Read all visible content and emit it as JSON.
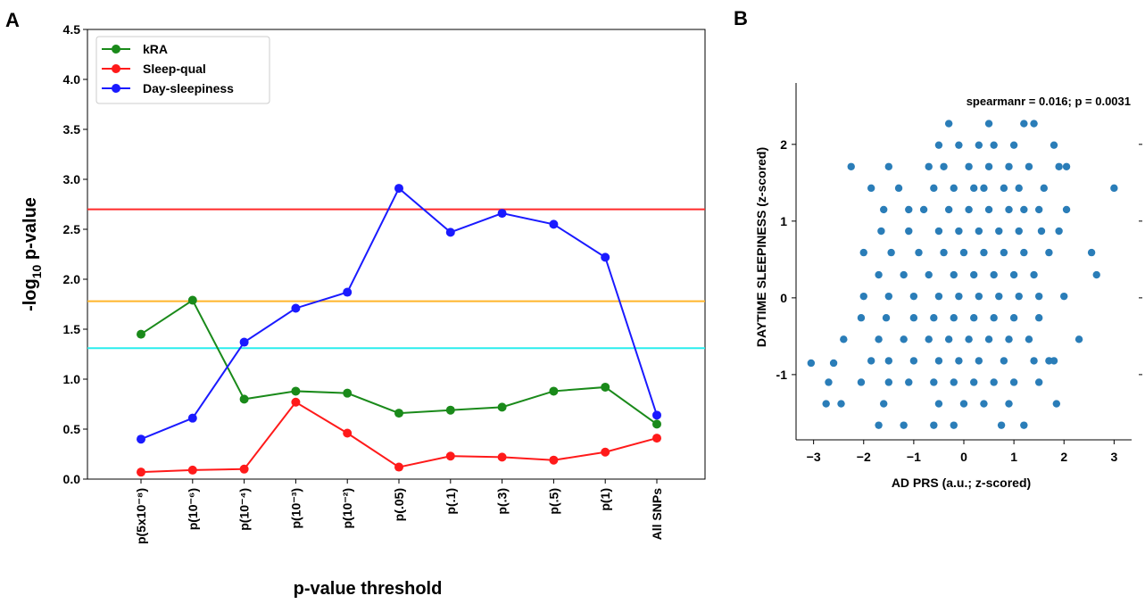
{
  "panels": {
    "a_letter": "A",
    "b_letter": "B"
  },
  "chart_data": [
    {
      "type": "line",
      "panel": "A",
      "xlabel": "p-value threshold",
      "ylabel_prefix": "-log",
      "ylabel_subscript": "10",
      "ylabel_suffix": " p-value",
      "ylim": [
        0,
        4.5
      ],
      "yticks": [
        "0.0",
        "0.5",
        "1.0",
        "1.5",
        "2.0",
        "2.5",
        "3.0",
        "3.5",
        "4.0",
        "4.5"
      ],
      "grid": false,
      "legend_position": "top-left",
      "categories": [
        "p(5x10⁻⁸)",
        "p(10⁻⁶)",
        "p(10⁻⁴)",
        "p(10⁻³)",
        "p(10⁻²)",
        "p(.05)",
        "p(.1)",
        "p(.3)",
        "p(.5)",
        "p(1)",
        "All SNPs"
      ],
      "series": [
        {
          "name": "kRA",
          "color": "#1a8a1a",
          "values": [
            1.45,
            1.79,
            0.8,
            0.88,
            0.86,
            0.66,
            0.69,
            0.72,
            0.88,
            0.92,
            0.55
          ]
        },
        {
          "name": "Sleep-qual",
          "color": "#ff1a1a",
          "values": [
            0.07,
            0.09,
            0.1,
            0.77,
            0.46,
            0.12,
            0.23,
            0.22,
            0.19,
            0.27,
            0.41
          ]
        },
        {
          "name": "Day-sleepiness",
          "color": "#1a1aff",
          "values": [
            0.4,
            0.61,
            1.37,
            1.71,
            1.87,
            2.91,
            2.47,
            2.66,
            2.55,
            2.22,
            0.64
          ]
        }
      ],
      "reference_lines": [
        {
          "y": 2.7,
          "color": "#ff2a2a"
        },
        {
          "y": 1.78,
          "color": "#ffb52a"
        },
        {
          "y": 1.31,
          "color": "#2aeeee"
        }
      ]
    },
    {
      "type": "scatter",
      "panel": "B",
      "xlabel": "AD PRS (a.u.;  z-scored)",
      "ylabel": "DAYTIME  SLEEPINESS  (z-scored)",
      "annotation": "spearmanr = 0.016; p = 0.0031",
      "xlim": [
        -3.35,
        3.35
      ],
      "ylim": [
        -1.85,
        2.8
      ],
      "xticks": [
        -3,
        -2,
        -1,
        0,
        1,
        2,
        3
      ],
      "yticks": [
        -1,
        0,
        1,
        2
      ],
      "xtick_labels": [
        "−3",
        "−2",
        "−1",
        "0",
        "1",
        "2",
        "3"
      ],
      "ytick_labels": [
        "-1",
        "0",
        "1",
        "2"
      ],
      "point_color": "#2a7db8",
      "points": [
        [
          -0.3,
          2.27
        ],
        [
          0.5,
          2.27
        ],
        [
          1.2,
          2.27
        ],
        [
          1.4,
          2.27
        ],
        [
          -0.5,
          1.99
        ],
        [
          -0.1,
          1.99
        ],
        [
          0.3,
          1.99
        ],
        [
          0.6,
          1.99
        ],
        [
          1.0,
          1.99
        ],
        [
          1.8,
          1.99
        ],
        [
          -2.25,
          1.71
        ],
        [
          -1.5,
          1.71
        ],
        [
          -0.7,
          1.71
        ],
        [
          -0.4,
          1.71
        ],
        [
          0.1,
          1.71
        ],
        [
          0.5,
          1.71
        ],
        [
          0.9,
          1.71
        ],
        [
          1.3,
          1.71
        ],
        [
          1.9,
          1.71
        ],
        [
          2.05,
          1.71
        ],
        [
          -1.85,
          1.43
        ],
        [
          -1.3,
          1.43
        ],
        [
          -0.6,
          1.43
        ],
        [
          -0.2,
          1.43
        ],
        [
          0.2,
          1.43
        ],
        [
          0.4,
          1.43
        ],
        [
          0.8,
          1.43
        ],
        [
          1.1,
          1.43
        ],
        [
          1.6,
          1.43
        ],
        [
          3.0,
          1.43
        ],
        [
          -1.6,
          1.15
        ],
        [
          -1.1,
          1.15
        ],
        [
          -0.8,
          1.15
        ],
        [
          -0.3,
          1.15
        ],
        [
          0.1,
          1.15
        ],
        [
          0.5,
          1.15
        ],
        [
          0.9,
          1.15
        ],
        [
          1.2,
          1.15
        ],
        [
          1.5,
          1.15
        ],
        [
          2.05,
          1.15
        ],
        [
          -1.65,
          0.87
        ],
        [
          -1.1,
          0.87
        ],
        [
          -0.5,
          0.87
        ],
        [
          -0.1,
          0.87
        ],
        [
          0.3,
          0.87
        ],
        [
          0.7,
          0.87
        ],
        [
          1.1,
          0.87
        ],
        [
          1.55,
          0.87
        ],
        [
          1.9,
          0.87
        ],
        [
          -2.0,
          0.59
        ],
        [
          -1.45,
          0.59
        ],
        [
          -0.9,
          0.59
        ],
        [
          -0.4,
          0.59
        ],
        [
          0.0,
          0.59
        ],
        [
          0.4,
          0.59
        ],
        [
          0.8,
          0.59
        ],
        [
          1.2,
          0.59
        ],
        [
          1.7,
          0.59
        ],
        [
          2.55,
          0.59
        ],
        [
          -1.7,
          0.3
        ],
        [
          -1.2,
          0.3
        ],
        [
          -0.7,
          0.3
        ],
        [
          -0.2,
          0.3
        ],
        [
          0.2,
          0.3
        ],
        [
          0.6,
          0.3
        ],
        [
          1.0,
          0.3
        ],
        [
          1.4,
          0.3
        ],
        [
          2.65,
          0.3
        ],
        [
          -2.0,
          0.02
        ],
        [
          -1.5,
          0.02
        ],
        [
          -1.0,
          0.02
        ],
        [
          -0.5,
          0.02
        ],
        [
          -0.1,
          0.02
        ],
        [
          0.3,
          0.02
        ],
        [
          0.7,
          0.02
        ],
        [
          1.1,
          0.02
        ],
        [
          1.5,
          0.02
        ],
        [
          2.0,
          0.02
        ],
        [
          -2.05,
          -0.26
        ],
        [
          -1.55,
          -0.26
        ],
        [
          -1.0,
          -0.26
        ],
        [
          -0.6,
          -0.26
        ],
        [
          -0.2,
          -0.26
        ],
        [
          0.2,
          -0.26
        ],
        [
          0.6,
          -0.26
        ],
        [
          1.0,
          -0.26
        ],
        [
          1.5,
          -0.26
        ],
        [
          -2.4,
          -0.54
        ],
        [
          -1.7,
          -0.54
        ],
        [
          -1.2,
          -0.54
        ],
        [
          -0.7,
          -0.54
        ],
        [
          -0.3,
          -0.54
        ],
        [
          0.1,
          -0.54
        ],
        [
          0.5,
          -0.54
        ],
        [
          0.9,
          -0.54
        ],
        [
          1.3,
          -0.54
        ],
        [
          2.3,
          -0.54
        ],
        [
          -1.5,
          -0.82
        ],
        [
          -1.0,
          -0.82
        ],
        [
          -0.5,
          -0.82
        ],
        [
          -0.1,
          -0.82
        ],
        [
          0.3,
          -0.82
        ],
        [
          0.8,
          -0.82
        ],
        [
          1.4,
          -0.82
        ],
        [
          1.8,
          -0.82
        ],
        [
          -3.05,
          -0.85
        ],
        [
          -2.6,
          -0.85
        ],
        [
          -1.85,
          -0.82
        ],
        [
          1.7,
          -0.82
        ],
        [
          -2.05,
          -1.1
        ],
        [
          -1.5,
          -1.1
        ],
        [
          -1.1,
          -1.1
        ],
        [
          -0.6,
          -1.1
        ],
        [
          -0.2,
          -1.1
        ],
        [
          0.2,
          -1.1
        ],
        [
          0.6,
          -1.1
        ],
        [
          1.0,
          -1.1
        ],
        [
          1.5,
          -1.1
        ],
        [
          -2.7,
          -1.1
        ],
        [
          -2.75,
          -1.38
        ],
        [
          -2.45,
          -1.38
        ],
        [
          -1.6,
          -1.38
        ],
        [
          -0.5,
          -1.38
        ],
        [
          0.0,
          -1.38
        ],
        [
          0.4,
          -1.38
        ],
        [
          0.9,
          -1.38
        ],
        [
          1.85,
          -1.38
        ],
        [
          -1.7,
          -1.66
        ],
        [
          -1.2,
          -1.66
        ],
        [
          -0.6,
          -1.66
        ],
        [
          -0.2,
          -1.66
        ],
        [
          0.75,
          -1.66
        ],
        [
          1.2,
          -1.66
        ]
      ]
    }
  ]
}
